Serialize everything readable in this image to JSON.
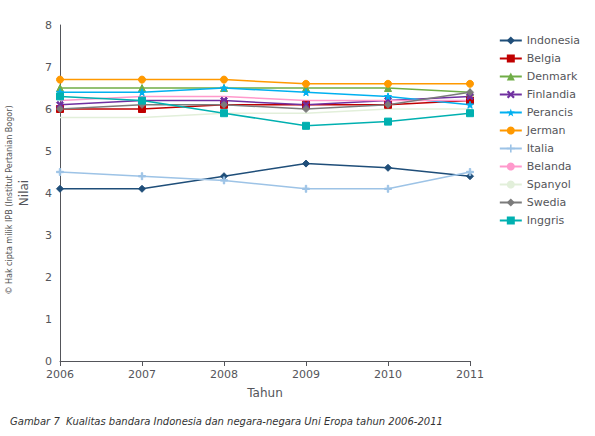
{
  "chart_data": {
    "type": "line",
    "xlabel": "Tahun",
    "ylabel": "Nilai",
    "categories": [
      "2006",
      "2007",
      "2008",
      "2009",
      "2010",
      "2011"
    ],
    "series": [
      {
        "name": "Indonesia",
        "color": "#1F4E79",
        "marker": "diamond",
        "values": [
          4.1,
          4.1,
          4.4,
          4.7,
          4.6,
          4.4
        ]
      },
      {
        "name": "Belgia",
        "color": "#C00000",
        "marker": "square",
        "values": [
          6.0,
          6.0,
          6.1,
          6.1,
          6.1,
          6.2
        ]
      },
      {
        "name": "Denmark",
        "color": "#70AD47",
        "marker": "triangle",
        "values": [
          6.5,
          6.5,
          6.5,
          6.5,
          6.5,
          6.4
        ]
      },
      {
        "name": "Finlandia",
        "color": "#7030A0",
        "marker": "x",
        "values": [
          6.1,
          6.2,
          6.2,
          6.1,
          6.2,
          6.3
        ]
      },
      {
        "name": "Perancis",
        "color": "#00B0F0",
        "marker": "star",
        "values": [
          6.4,
          6.4,
          6.5,
          6.4,
          6.3,
          6.1
        ]
      },
      {
        "name": "Jerman",
        "color": "#FF9900",
        "marker": "circle",
        "values": [
          6.7,
          6.7,
          6.7,
          6.6,
          6.6,
          6.6
        ]
      },
      {
        "name": "Italia",
        "color": "#9DC3E6",
        "marker": "plus",
        "values": [
          4.5,
          4.4,
          4.3,
          4.1,
          4.1,
          4.5
        ]
      },
      {
        "name": "Belanda",
        "color": "#FF99CC",
        "marker": "none",
        "values": [
          6.2,
          6.3,
          6.3,
          6.2,
          6.2,
          6.2
        ]
      },
      {
        "name": "Spanyol",
        "color": "#E2EFDA",
        "marker": "none",
        "values": [
          5.8,
          5.8,
          5.9,
          5.9,
          6.0,
          6.0
        ]
      },
      {
        "name": "Swedia",
        "color": "#7B7B7B",
        "marker": "diamond",
        "values": [
          6.0,
          6.1,
          6.1,
          6.0,
          6.1,
          6.4
        ]
      },
      {
        "name": "Inggris",
        "color": "#00B0B0",
        "marker": "square",
        "values": [
          6.3,
          6.2,
          5.9,
          5.6,
          5.7,
          5.9
        ]
      }
    ],
    "ylim": [
      0,
      8
    ],
    "yticks": [
      0,
      1,
      2,
      3,
      4,
      5,
      6,
      7,
      8
    ],
    "grid": false,
    "legend": "right",
    "caption": "Gambar 7  Kualitas bandara Indonesia dan negara-negara Uni Eropa tahun 2006-2011",
    "annotations": [
      "© Hak cipta milik IPB (Institut Pertanian Bogor)"
    ]
  }
}
